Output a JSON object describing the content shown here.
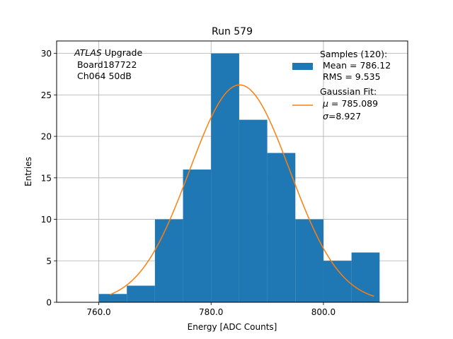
{
  "chart_data": {
    "type": "bar",
    "title": "Run 579",
    "xlabel": "Energy [ADC Counts]",
    "ylabel": "Entries",
    "xlim": [
      752.5,
      815.0
    ],
    "ylim": [
      0,
      31.5
    ],
    "xticks": [
      760,
      780,
      800
    ],
    "xtick_labels": [
      "760.0",
      "780.0",
      "800.0"
    ],
    "yticks": [
      0,
      5,
      10,
      15,
      20,
      25,
      30
    ],
    "ytick_labels": [
      "0",
      "5",
      "10",
      "15",
      "20",
      "25",
      "30"
    ],
    "grid": true,
    "histogram": {
      "name": "Samples",
      "bin_edges": [
        760,
        765,
        770,
        775,
        780,
        785,
        790,
        795,
        800,
        805,
        810
      ],
      "counts": [
        1,
        2,
        10,
        16,
        30,
        22,
        18,
        10,
        5,
        6
      ],
      "color": "#1f77b4"
    },
    "fit": {
      "name": "Gaussian Fit",
      "type": "gaussian",
      "mu": 785.089,
      "sigma": 8.927,
      "amplitude": 26.2,
      "x_range": [
        762,
        809
      ],
      "color": "#ff7f0e"
    },
    "annotation": {
      "italic": "ATLAS",
      "rest": " Upgrade",
      "line2": " Board187722",
      "line3": " Ch064 50dB"
    },
    "legend": {
      "position": "top-right",
      "samples_line1": "Samples (120):",
      "samples_line2": " Mean = 786.12",
      "samples_line3": " RMS = 9.535",
      "fit_line1": "Gaussian Fit:",
      "fit_mu_symbol": "μ",
      "fit_mu_text": " = 785.089",
      "fit_sigma_symbol": "σ",
      "fit_sigma_text": "=8.927"
    }
  }
}
